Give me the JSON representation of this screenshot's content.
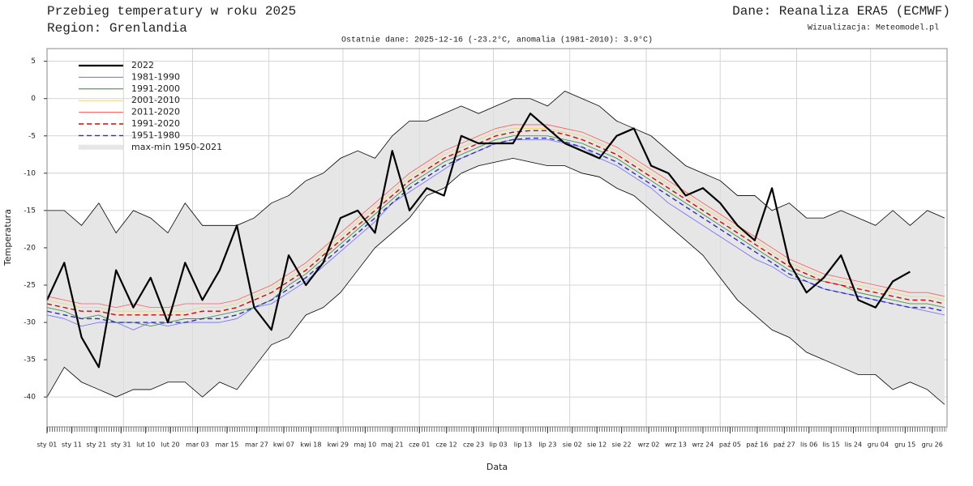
{
  "chart_data": {
    "type": "line",
    "title": "Przebieg temperatury w roku 2025",
    "region": "Region: Grenlandia",
    "source": "Dane: Reanaliza ERA5 (ECMWF)",
    "credit": "Wizualizacja: Meteomodel.pl",
    "subtitle": "Ostatnie dane: 2025-12-16 (-23.2°C, anomalia (1981-2010): 3.9°C)",
    "ylabel": "Temperatura",
    "xlabel": "Data",
    "xlim": [
      1,
      366
    ],
    "ylim": [
      -44,
      6.7
    ],
    "yticks": [
      5,
      0,
      -5,
      -10,
      -15,
      -20,
      -25,
      -30,
      -35,
      -40
    ],
    "xgrid": [
      32,
      60,
      91,
      121,
      152,
      182,
      213,
      244,
      274,
      305,
      335
    ],
    "xticks": [
      {
        "value": 1,
        "label": "sty 01"
      },
      {
        "value": 11,
        "label": "sty 11"
      },
      {
        "value": 21,
        "label": "sty 21"
      },
      {
        "value": 31,
        "label": "sty 31"
      },
      {
        "value": 41,
        "label": "lut 10"
      },
      {
        "value": 51,
        "label": "lut 20"
      },
      {
        "value": 62,
        "label": "mar 03"
      },
      {
        "value": 74,
        "label": "mar 15"
      },
      {
        "value": 86,
        "label": "mar 27"
      },
      {
        "value": 97,
        "label": "kwi 07"
      },
      {
        "value": 108,
        "label": "kwi 18"
      },
      {
        "value": 119,
        "label": "kwi 29"
      },
      {
        "value": 130,
        "label": "maj 10"
      },
      {
        "value": 141,
        "label": "maj 21"
      },
      {
        "value": 152,
        "label": "cze 01"
      },
      {
        "value": 163,
        "label": "cze 12"
      },
      {
        "value": 174,
        "label": "cze 23"
      },
      {
        "value": 184,
        "label": "lip 03"
      },
      {
        "value": 194,
        "label": "lip 13"
      },
      {
        "value": 204,
        "label": "lip 23"
      },
      {
        "value": 214,
        "label": "sie 02"
      },
      {
        "value": 224,
        "label": "sie 12"
      },
      {
        "value": 234,
        "label": "sie 22"
      },
      {
        "value": 245,
        "label": "wrz 02"
      },
      {
        "value": 256,
        "label": "wrz 13"
      },
      {
        "value": 267,
        "label": "wrz 24"
      },
      {
        "value": 278,
        "label": "paź 05"
      },
      {
        "value": 289,
        "label": "paź 16"
      },
      {
        "value": 300,
        "label": "paź 27"
      },
      {
        "value": 310,
        "label": "lis 06"
      },
      {
        "value": 319,
        "label": "lis 15"
      },
      {
        "value": 328,
        "label": "lis 24"
      },
      {
        "value": 338,
        "label": "gru 04"
      },
      {
        "value": 349,
        "label": "gru 15"
      },
      {
        "value": 360,
        "label": "gru 26"
      }
    ],
    "x": [
      1,
      8,
      15,
      22,
      29,
      36,
      43,
      50,
      57,
      64,
      71,
      78,
      85,
      92,
      99,
      106,
      113,
      120,
      127,
      134,
      141,
      148,
      155,
      162,
      169,
      176,
      183,
      190,
      197,
      204,
      211,
      218,
      225,
      232,
      239,
      246,
      253,
      260,
      267,
      274,
      281,
      288,
      295,
      302,
      309,
      316,
      323,
      330,
      337,
      344,
      351,
      358,
      365
    ],
    "band": {
      "name": "max-min 1950-2021",
      "color": "#e6e6e6",
      "max": [
        -15,
        -15,
        -17,
        -14,
        -18,
        -15,
        -16,
        -18,
        -14,
        -17,
        -17,
        -17,
        -16,
        -14,
        -13,
        -11,
        -10,
        -8,
        -7,
        -8,
        -5,
        -3,
        -3,
        -2,
        -1,
        -2,
        -1,
        0,
        0,
        -1,
        1,
        0,
        -1,
        -3,
        -4,
        -5,
        -7,
        -9,
        -10,
        -11,
        -13,
        -13,
        -15,
        -14,
        -16,
        -16,
        -15,
        -16,
        -17,
        -15,
        -17,
        -15,
        -16
      ],
      "min": [
        -40,
        -36,
        -38,
        -39,
        -40,
        -39,
        -39,
        -38,
        -38,
        -40,
        -38,
        -39,
        -36,
        -33,
        -32,
        -29,
        -28,
        -26,
        -23,
        -20,
        -18,
        -16,
        -13,
        -12,
        -10,
        -9,
        -8.5,
        -8,
        -8.5,
        -9,
        -9,
        -10,
        -10.5,
        -12,
        -13,
        -15,
        -17,
        -19,
        -21,
        -24,
        -27,
        -29,
        -31,
        -32,
        -34,
        -35,
        -36,
        -37,
        -37,
        -39,
        -38,
        -39,
        -41
      ]
    },
    "legend": "top-left",
    "series": [
      {
        "name": "2022",
        "color": "#000000",
        "width": 2.2,
        "dashed": false,
        "values": [
          -27,
          -22,
          -32,
          -36,
          -23,
          -28,
          -24,
          -30,
          -22,
          -27,
          -23,
          -17,
          -28,
          -31,
          -21,
          -25,
          -22,
          -16,
          -15,
          -18,
          -7,
          -15,
          -12,
          -13,
          -5,
          -6,
          -6,
          -6,
          -2,
          -4,
          -6,
          -7,
          -8,
          -5,
          -4,
          -9,
          -10,
          -13,
          -12,
          -14,
          -17,
          -19,
          -12,
          -22,
          -26,
          -24,
          -21,
          -27,
          -28,
          -24.5,
          -23.2,
          null,
          null
        ]
      },
      {
        "name": "1981-1990",
        "color": "#6b6bff",
        "width": 0.8,
        "dashed": false,
        "values": [
          -29,
          -29.5,
          -30.5,
          -30,
          -30,
          -31,
          -30,
          -30.5,
          -30,
          -30,
          -30,
          -29.5,
          -28,
          -27.5,
          -26,
          -24.5,
          -22.5,
          -20.5,
          -18.5,
          -16.5,
          -14,
          -12.5,
          -11,
          -9.5,
          -8,
          -7,
          -6,
          -5.5,
          -5.5,
          -5.5,
          -6,
          -6.5,
          -8,
          -9,
          -10.5,
          -12,
          -14,
          -15.5,
          -17,
          -18.5,
          -20,
          -21.5,
          -22.5,
          -24,
          -24.5,
          -25.5,
          -26,
          -26.5,
          -27,
          -27.5,
          -28,
          -28.5,
          -29
        ]
      },
      {
        "name": "1991-2000",
        "color": "#2e8b2e",
        "width": 0.8,
        "dashed": false,
        "values": [
          -28,
          -28.5,
          -29.5,
          -29,
          -30,
          -30,
          -30.5,
          -30,
          -29.5,
          -29.5,
          -29,
          -28.5,
          -28,
          -27,
          -25,
          -23.5,
          -21.5,
          -19.5,
          -17.5,
          -15.5,
          -13.5,
          -11.5,
          -10,
          -8.5,
          -7.5,
          -6.5,
          -5.5,
          -5,
          -5,
          -5,
          -5.5,
          -6,
          -7,
          -8,
          -9.5,
          -11,
          -12.5,
          -14,
          -15.5,
          -17,
          -18.5,
          -20,
          -21.5,
          -23,
          -24,
          -24.5,
          -25,
          -26,
          -26.5,
          -27,
          -27.5,
          -27.5,
          -28
        ]
      },
      {
        "name": "2001-2010",
        "color": "#e6dc6e",
        "width": 0.8,
        "dashed": false,
        "values": [
          -27,
          -27.5,
          -28,
          -28,
          -28.5,
          -28.5,
          -28.5,
          -28.5,
          -28.5,
          -28,
          -28,
          -27.5,
          -26.5,
          -25.5,
          -24,
          -22.5,
          -20.5,
          -18.5,
          -16.5,
          -14.5,
          -12.5,
          -10.5,
          -9,
          -7.5,
          -6.5,
          -5.5,
          -4.5,
          -4,
          -4,
          -4,
          -4.5,
          -5,
          -6,
          -7,
          -8.5,
          -10,
          -11.5,
          -13,
          -14.5,
          -16,
          -17.5,
          -19,
          -20.5,
          -22,
          -23,
          -24,
          -24.5,
          -25,
          -25.5,
          -26,
          -26.5,
          -26.5,
          -27
        ]
      },
      {
        "name": "2011-2020",
        "color": "#ff5a5a",
        "width": 0.8,
        "dashed": false,
        "values": [
          -26.5,
          -27,
          -27.5,
          -27.5,
          -28,
          -27.5,
          -28,
          -28,
          -27.5,
          -27.5,
          -27.5,
          -27,
          -26,
          -25,
          -23.5,
          -22,
          -20,
          -18,
          -16,
          -14,
          -12,
          -10,
          -8.5,
          -7,
          -6,
          -5,
          -4,
          -3.5,
          -3.5,
          -3.5,
          -4,
          -4.5,
          -5.5,
          -6.5,
          -8,
          -9.5,
          -11,
          -12.5,
          -14,
          -15.5,
          -17,
          -18.5,
          -20,
          -21.5,
          -22.5,
          -23.5,
          -24,
          -24.5,
          -25,
          -25.5,
          -26,
          -26,
          -26.5
        ]
      },
      {
        "name": "1991-2020",
        "color": "#e00000",
        "width": 1.4,
        "dashed": true,
        "values": [
          -27.5,
          -28,
          -28.5,
          -28.5,
          -29,
          -29,
          -29,
          -29,
          -29,
          -28.5,
          -28.5,
          -28,
          -27,
          -26,
          -24.5,
          -23,
          -21,
          -19,
          -17,
          -15,
          -13,
          -11,
          -9.5,
          -8,
          -7,
          -6,
          -5,
          -4.5,
          -4.3,
          -4.3,
          -4.8,
          -5.5,
          -6.5,
          -7.5,
          -9,
          -10.5,
          -12,
          -13.5,
          -15,
          -16.5,
          -18,
          -19.5,
          -21,
          -22.5,
          -23.5,
          -24.5,
          -25,
          -25.5,
          -26,
          -26.5,
          -27,
          -27,
          -27.5
        ]
      },
      {
        "name": "1951-1980",
        "color": "#2a2ad0",
        "width": 1.4,
        "dashed": true,
        "values": [
          -28.5,
          -29,
          -29.5,
          -29.5,
          -30,
          -30,
          -30,
          -30,
          -30,
          -29.5,
          -29.5,
          -29,
          -28,
          -27,
          -25.5,
          -24,
          -22,
          -20,
          -18,
          -16,
          -14,
          -12,
          -10.5,
          -9,
          -8,
          -7,
          -6,
          -5.5,
          -5.3,
          -5.3,
          -5.8,
          -6.5,
          -7.5,
          -8.5,
          -10,
          -11.5,
          -13,
          -14.5,
          -16,
          -17.5,
          -19,
          -20.5,
          -22,
          -23.5,
          -24.5,
          -25.5,
          -26,
          -26.5,
          -27,
          -27.5,
          -28,
          -28,
          -28.5
        ]
      }
    ]
  }
}
